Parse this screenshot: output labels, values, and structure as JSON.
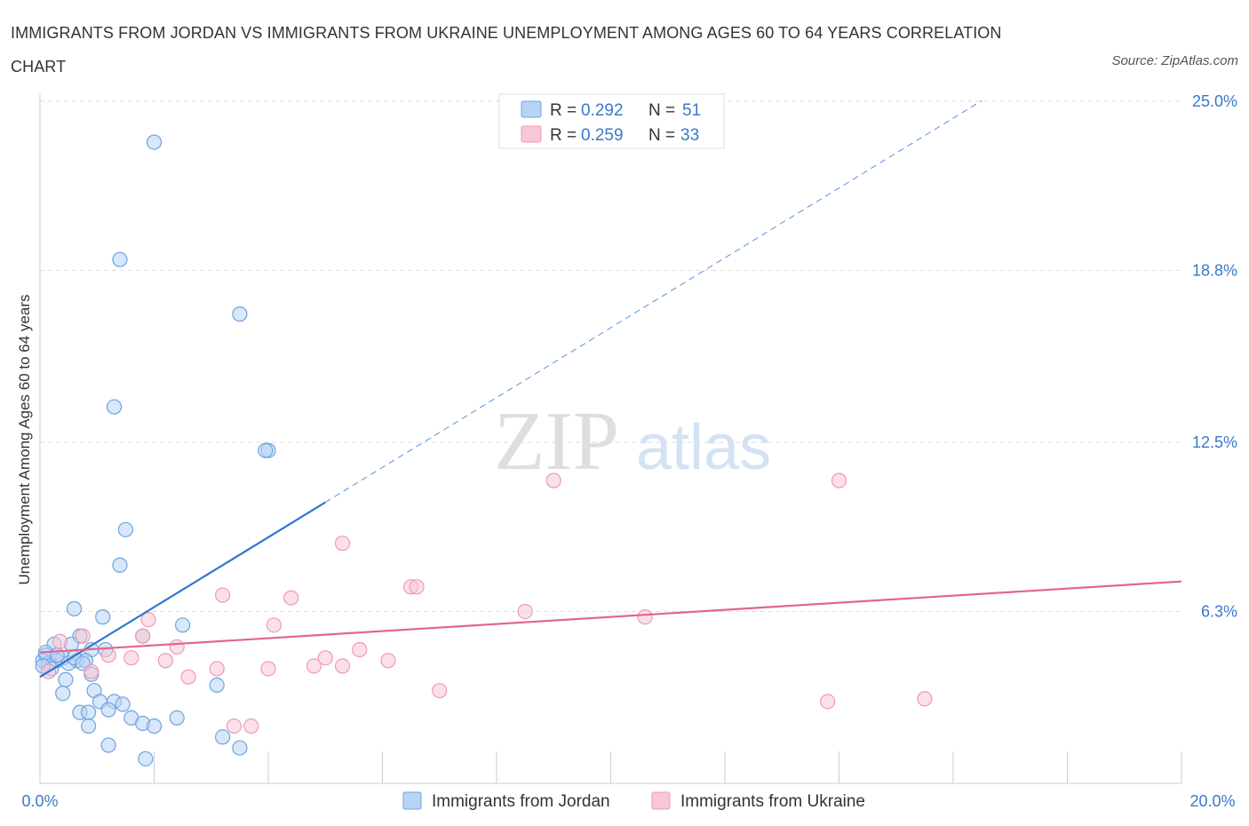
{
  "title": "IMMIGRANTS FROM JORDAN VS IMMIGRANTS FROM UKRAINE UNEMPLOYMENT AMONG AGES 60 TO 64 YEARS CORRELATION CHART",
  "source": "Source: ZipAtlas.com",
  "watermark": {
    "zip": "ZIP",
    "atlas": "atlas"
  },
  "colors": {
    "jordan_fill": "#b8d4f4",
    "jordan_stroke": "#6fa3e0",
    "jordan_line": "#2e77d0",
    "ukraine_fill": "#f9c6d6",
    "ukraine_stroke": "#ee99b6",
    "ukraine_line": "#e0668f",
    "value_text": "#3b78c8",
    "grid": "#dddddd"
  },
  "chart_data": {
    "type": "scatter",
    "title": "IMMIGRANTS FROM JORDAN VS IMMIGRANTS FROM UKRAINE UNEMPLOYMENT AMONG AGES 60 TO 64 YEARS CORRELATION CHART",
    "xlabel": "",
    "ylabel": "Unemployment Among Ages 60 to 64 years",
    "xlim": [
      0,
      20
    ],
    "ylim": [
      0,
      25
    ],
    "x_tick_labels": [
      "0.0%",
      "20.0%"
    ],
    "y_tick_labels": [
      {
        "value": 6.3,
        "label": "6.3%"
      },
      {
        "value": 12.5,
        "label": "12.5%"
      },
      {
        "value": 18.8,
        "label": "18.8%"
      },
      {
        "value": 25.0,
        "label": "25.0%"
      }
    ],
    "legend_top": [
      {
        "r_label": "R = ",
        "r_value": "0.292",
        "n_label": "N = ",
        "n_value": "51"
      },
      {
        "r_label": "R = ",
        "r_value": "0.259",
        "n_label": "N = ",
        "n_value": "33"
      }
    ],
    "series": [
      {
        "name": "Immigrants from Jordan",
        "r": 0.292,
        "n": 51,
        "trend": {
          "x0": 0.0,
          "y0": 3.9,
          "x1": 5.0,
          "y1": 10.3,
          "dashed_to_x": 16.5
        },
        "points": [
          [
            2.0,
            23.5
          ],
          [
            1.4,
            19.2
          ],
          [
            3.5,
            17.2
          ],
          [
            1.3,
            13.8
          ],
          [
            4.0,
            12.2
          ],
          [
            3.95,
            12.2
          ],
          [
            1.5,
            9.3
          ],
          [
            1.4,
            8.0
          ],
          [
            0.6,
            6.4
          ],
          [
            1.1,
            6.1
          ],
          [
            2.5,
            5.8
          ],
          [
            0.7,
            5.4
          ],
          [
            1.8,
            5.4
          ],
          [
            0.25,
            5.1
          ],
          [
            0.55,
            5.1
          ],
          [
            0.9,
            4.9
          ],
          [
            1.15,
            4.9
          ],
          [
            0.1,
            4.7
          ],
          [
            0.4,
            4.6
          ],
          [
            0.05,
            4.5
          ],
          [
            0.3,
            4.5
          ],
          [
            0.65,
            4.5
          ],
          [
            0.8,
            4.5
          ],
          [
            0.15,
            4.4
          ],
          [
            0.5,
            4.4
          ],
          [
            0.2,
            4.2
          ],
          [
            0.45,
            3.8
          ],
          [
            0.9,
            4.0
          ],
          [
            3.1,
            3.6
          ],
          [
            0.95,
            3.4
          ],
          [
            0.4,
            3.3
          ],
          [
            1.05,
            3.0
          ],
          [
            1.3,
            3.0
          ],
          [
            1.45,
            2.9
          ],
          [
            0.7,
            2.6
          ],
          [
            0.85,
            2.6
          ],
          [
            1.2,
            2.7
          ],
          [
            1.6,
            2.4
          ],
          [
            2.4,
            2.4
          ],
          [
            0.85,
            2.1
          ],
          [
            1.8,
            2.2
          ],
          [
            2.0,
            2.1
          ],
          [
            3.2,
            1.7
          ],
          [
            1.2,
            1.4
          ],
          [
            3.5,
            1.3
          ],
          [
            1.85,
            0.9
          ],
          [
            0.1,
            4.8
          ],
          [
            0.3,
            4.7
          ],
          [
            0.6,
            4.6
          ],
          [
            0.75,
            4.4
          ],
          [
            0.05,
            4.3
          ]
        ]
      },
      {
        "name": "Immigrants from Ukraine",
        "r": 0.259,
        "n": 33,
        "trend": {
          "x0": 0.0,
          "y0": 4.8,
          "x1": 20.0,
          "y1": 7.4
        },
        "points": [
          [
            9.0,
            11.1
          ],
          [
            14.0,
            11.1
          ],
          [
            5.3,
            8.8
          ],
          [
            6.5,
            7.2
          ],
          [
            6.6,
            7.2
          ],
          [
            3.2,
            6.9
          ],
          [
            4.4,
            6.8
          ],
          [
            8.5,
            6.3
          ],
          [
            10.6,
            6.1
          ],
          [
            1.9,
            6.0
          ],
          [
            4.1,
            5.8
          ],
          [
            0.75,
            5.4
          ],
          [
            1.8,
            5.4
          ],
          [
            0.35,
            5.2
          ],
          [
            2.4,
            5.0
          ],
          [
            5.6,
            4.9
          ],
          [
            1.2,
            4.7
          ],
          [
            1.6,
            4.6
          ],
          [
            5.0,
            4.6
          ],
          [
            2.2,
            4.5
          ],
          [
            6.1,
            4.5
          ],
          [
            4.8,
            4.3
          ],
          [
            5.3,
            4.3
          ],
          [
            3.1,
            4.2
          ],
          [
            4.0,
            4.2
          ],
          [
            0.9,
            4.1
          ],
          [
            2.6,
            3.9
          ],
          [
            0.15,
            4.1
          ],
          [
            7.0,
            3.4
          ],
          [
            15.5,
            3.1
          ],
          [
            13.8,
            3.0
          ],
          [
            3.7,
            2.1
          ],
          [
            3.4,
            2.1
          ]
        ]
      }
    ]
  }
}
